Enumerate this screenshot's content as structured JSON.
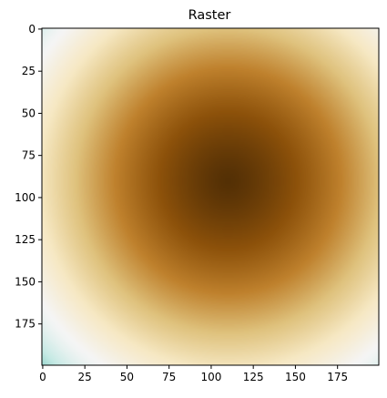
{
  "chart_data": {
    "type": "heatmap",
    "title": "Raster",
    "grid": false,
    "colormap": "BrBG",
    "colormap_stops": [
      "#543005",
      "#8c510a",
      "#bf812d",
      "#dfc27d",
      "#f6e8c3",
      "#f5f5f5",
      "#c7eae5",
      "#80cdc1",
      "#35978f",
      "#01665e",
      "#003c30"
    ],
    "shape": [
      200,
      200
    ],
    "xlim": [
      -0.5,
      199.5
    ],
    "ylim": [
      199.5,
      -0.5
    ],
    "x_ticks": [
      0,
      25,
      50,
      75,
      100,
      125,
      150,
      175
    ],
    "y_ticks": [
      0,
      25,
      50,
      75,
      100,
      125,
      150,
      175
    ],
    "field": {
      "description": "radial field centered near column 110, row 90; lowest (dark brown) at center, highest (teal) at far corners",
      "center": [
        110,
        90
      ],
      "white_radius": 132,
      "max_radius": 185
    }
  }
}
